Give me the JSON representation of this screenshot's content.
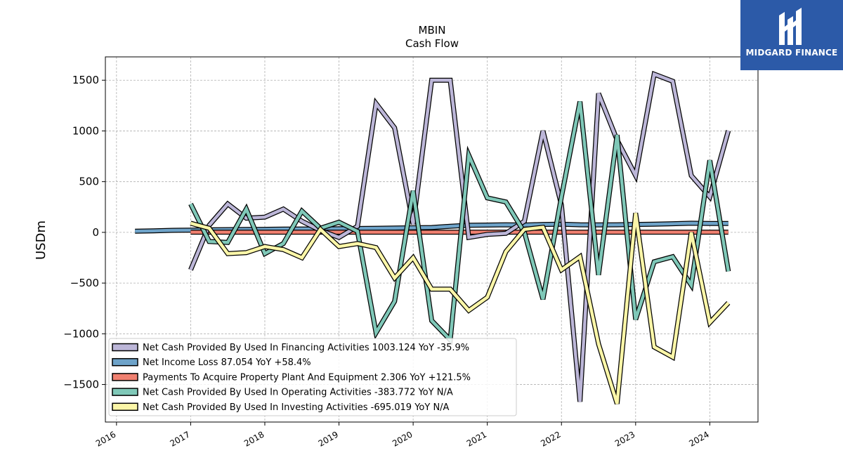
{
  "chart_data": {
    "type": "line",
    "title": "MBIN",
    "subtitle": "Cash Flow",
    "xlabel": "",
    "ylabel": "USDm",
    "xlim": [
      2015.85,
      2024.65
    ],
    "ylim": [
      -1870,
      1730
    ],
    "x_ticks": [
      2016,
      2017,
      2018,
      2019,
      2020,
      2021,
      2022,
      2023,
      2024
    ],
    "y_ticks": [
      -1500,
      -1000,
      -500,
      0,
      500,
      1000,
      1500
    ],
    "y_tick_labels": [
      "−1500",
      "−1000",
      "−500",
      "0",
      "500",
      "1000",
      "1500"
    ],
    "grid": true,
    "legend_position": "lower-left",
    "series": [
      {
        "name": "Net Cash Provided By Used In Financing Activities  1003.124 YoY -35.9%",
        "color": "#bcb6d8",
        "x": [
          2017.0,
          2017.25,
          2017.5,
          2017.75,
          2018.0,
          2018.25,
          2018.5,
          2018.75,
          2019.0,
          2019.25,
          2019.5,
          2019.75,
          2020.0,
          2020.25,
          2020.5,
          2020.75,
          2021.0,
          2021.25,
          2021.5,
          2021.75,
          2022.0,
          2022.25,
          2022.5,
          2022.75,
          2023.0,
          2023.25,
          2023.5,
          2023.75,
          2024.0,
          2024.25
        ],
        "values": [
          -370,
          70,
          280,
          140,
          150,
          230,
          110,
          20,
          -50,
          60,
          1270,
          1030,
          80,
          1500,
          1500,
          -50,
          -20,
          -10,
          110,
          1000,
          270,
          -1670,
          1370,
          910,
          560,
          1560,
          1490,
          560,
          350,
          1003
        ]
      },
      {
        "name": "Net Income Loss  87.054 YoY +58.4%",
        "color": "#6ea3c9",
        "x": [
          2016.25,
          2016.5,
          2016.75,
          2017.0,
          2017.25,
          2017.5,
          2017.75,
          2018.0,
          2018.25,
          2018.5,
          2018.75,
          2019.0,
          2019.25,
          2019.5,
          2019.75,
          2020.0,
          2020.25,
          2020.5,
          2020.75,
          2021.0,
          2021.25,
          2021.5,
          2021.75,
          2022.0,
          2022.25,
          2022.5,
          2022.75,
          2023.0,
          2023.25,
          2023.5,
          2023.75,
          2024.0,
          2024.25
        ],
        "values": [
          12,
          15,
          20,
          22,
          25,
          27,
          28,
          30,
          32,
          33,
          33,
          35,
          38,
          40,
          42,
          45,
          48,
          60,
          70,
          72,
          75,
          72,
          78,
          80,
          75,
          73,
          75,
          78,
          80,
          85,
          90,
          87,
          87
        ]
      },
      {
        "name": "Payments To Acquire Property Plant And Equipment  2.306 YoY +121.5%",
        "color": "#f08070",
        "x": [
          2017.0,
          2017.25,
          2017.5,
          2017.75,
          2018.0,
          2018.25,
          2018.5,
          2018.75,
          2019.0,
          2019.25,
          2019.5,
          2019.75,
          2020.0,
          2020.25,
          2020.5,
          2020.75,
          2021.0,
          2021.25,
          2021.5,
          2021.75,
          2022.0,
          2022.25,
          2022.5,
          2022.75,
          2023.0,
          2023.25,
          2023.5,
          2023.75,
          2024.0,
          2024.25
        ],
        "values": [
          2,
          2,
          2,
          2,
          2,
          2,
          2,
          2,
          2,
          2,
          2,
          2,
          2,
          2,
          2,
          2,
          2,
          2,
          2,
          2,
          2,
          2,
          2,
          2,
          2,
          2,
          2,
          2,
          2,
          2.306
        ]
      },
      {
        "name": "Net Cash Provided By Used In Operating Activities  -383.772 YoY N/A",
        "color": "#7fc8b8",
        "x": [
          2017.0,
          2017.25,
          2017.5,
          2017.75,
          2018.0,
          2018.25,
          2018.5,
          2018.75,
          2019.0,
          2019.25,
          2019.5,
          2019.75,
          2020.0,
          2020.25,
          2020.5,
          2020.75,
          2021.0,
          2021.25,
          2021.5,
          2021.75,
          2022.0,
          2022.25,
          2022.5,
          2022.75,
          2023.0,
          2023.25,
          2023.5,
          2023.75,
          2024.0,
          2024.25
        ],
        "values": [
          280,
          -90,
          -100,
          230,
          -210,
          -110,
          210,
          40,
          100,
          10,
          -990,
          -680,
          410,
          -870,
          -1060,
          760,
          340,
          300,
          0,
          -660,
          350,
          1290,
          -420,
          960,
          -860,
          -290,
          -240,
          -520,
          710,
          -384
        ]
      },
      {
        "name": "Net Cash Provided By Used In Investing Activities  -695.019 YoY N/A",
        "color": "#fbf6a8",
        "x": [
          2017.0,
          2017.25,
          2017.5,
          2017.75,
          2018.0,
          2018.25,
          2018.5,
          2018.75,
          2019.0,
          2019.25,
          2019.5,
          2019.75,
          2020.0,
          2020.25,
          2020.5,
          2020.75,
          2021.0,
          2021.25,
          2021.5,
          2021.75,
          2022.0,
          2022.25,
          2022.5,
          2022.75,
          2023.0,
          2023.25,
          2023.5,
          2023.75,
          2024.0,
          2024.25
        ],
        "values": [
          90,
          40,
          -210,
          -200,
          -140,
          -170,
          -250,
          30,
          -140,
          -110,
          -150,
          -450,
          -250,
          -560,
          -560,
          -770,
          -640,
          -190,
          30,
          50,
          -370,
          -240,
          -1100,
          -1690,
          190,
          -1130,
          -1230,
          0,
          -890,
          -695
        ]
      }
    ]
  },
  "logo": {
    "text": "MIDGARD FINANCE",
    "icon": "midgard-logo-icon",
    "background": "#2c5aa8"
  }
}
